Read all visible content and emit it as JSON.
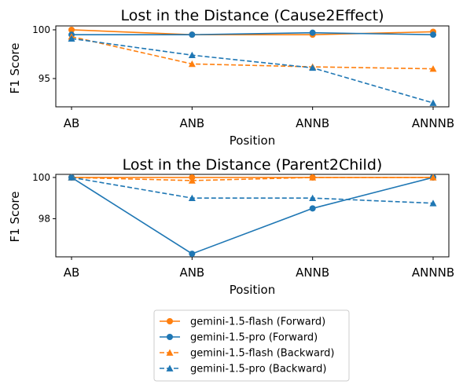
{
  "chart_data": [
    {
      "type": "line",
      "title": "Lost in the Distance (Cause2Effect)",
      "xlabel": "Position",
      "ylabel": "F1 Score",
      "categories": [
        "AB",
        "ANB",
        "ANNB",
        "ANNNB"
      ],
      "yticks": [
        "95",
        "100"
      ],
      "ylim": [
        92.1,
        100.4
      ],
      "series": [
        {
          "name": "gemini-1.5-flash (Forward)",
          "values": [
            100.0,
            99.5,
            99.5,
            99.8
          ],
          "color": "#ff7f0e",
          "style": "solid",
          "marker": "circle"
        },
        {
          "name": "gemini-1.5-pro (Forward)",
          "values": [
            99.5,
            99.5,
            99.7,
            99.5
          ],
          "color": "#1f77b4",
          "style": "solid",
          "marker": "circle"
        },
        {
          "name": "gemini-1.5-flash (Backward)",
          "values": [
            99.3,
            96.5,
            96.2,
            96.0
          ],
          "color": "#ff7f0e",
          "style": "dashed",
          "marker": "triangle"
        },
        {
          "name": "gemini-1.5-pro (Backward)",
          "values": [
            99.1,
            97.4,
            96.1,
            92.5
          ],
          "color": "#1f77b4",
          "style": "dashed",
          "marker": "triangle"
        }
      ]
    },
    {
      "type": "line",
      "title": "Lost in the Distance (Parent2Child)",
      "xlabel": "Position",
      "ylabel": "F1 Score",
      "categories": [
        "AB",
        "ANB",
        "ANNB",
        "ANNNB"
      ],
      "yticks": [
        "98",
        "100"
      ],
      "ylim": [
        96.15,
        100.15
      ],
      "series": [
        {
          "name": "gemini-1.5-flash (Forward)",
          "values": [
            100.0,
            100.0,
            100.0,
            100.0
          ],
          "color": "#ff7f0e",
          "style": "solid",
          "marker": "circle"
        },
        {
          "name": "gemini-1.5-pro (Forward)",
          "values": [
            100.0,
            96.3,
            98.5,
            100.0
          ],
          "color": "#1f77b4",
          "style": "solid",
          "marker": "circle"
        },
        {
          "name": "gemini-1.5-flash (Backward)",
          "values": [
            100.0,
            99.85,
            100.0,
            100.0
          ],
          "color": "#ff7f0e",
          "style": "dashed",
          "marker": "triangle"
        },
        {
          "name": "gemini-1.5-pro (Backward)",
          "values": [
            100.0,
            99.0,
            99.0,
            98.75
          ],
          "color": "#1f77b4",
          "style": "dashed",
          "marker": "triangle"
        }
      ]
    }
  ],
  "legend": {
    "placement": "bottom-center",
    "entries": [
      {
        "label": "gemini-1.5-flash (Forward)",
        "color": "#ff7f0e",
        "style": "solid",
        "marker": "circle"
      },
      {
        "label": "gemini-1.5-pro (Forward)",
        "color": "#1f77b4",
        "style": "solid",
        "marker": "circle"
      },
      {
        "label": "gemini-1.5-flash (Backward)",
        "color": "#ff7f0e",
        "style": "dashed",
        "marker": "triangle"
      },
      {
        "label": "gemini-1.5-pro (Backward)",
        "color": "#1f77b4",
        "style": "dashed",
        "marker": "triangle"
      }
    ]
  }
}
